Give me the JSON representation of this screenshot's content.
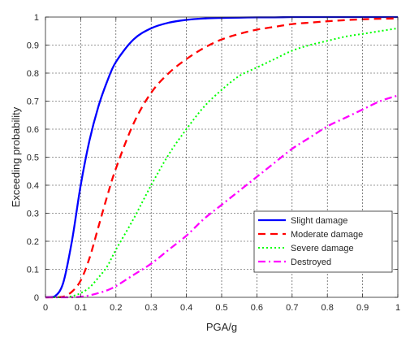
{
  "chart_data": {
    "type": "line",
    "title": "",
    "xlabel": "PGA/g",
    "ylabel": "Exceeding probability",
    "xlim": [
      0,
      1
    ],
    "ylim": [
      0,
      1
    ],
    "xticks": [
      "0",
      "0.1",
      "0.2",
      "0.3",
      "0.4",
      "0.5",
      "0.6",
      "0.7",
      "0.8",
      "0.9",
      "1"
    ],
    "yticks": [
      "0",
      "0.1",
      "0.2",
      "0.3",
      "0.4",
      "0.5",
      "0.6",
      "0.7",
      "0.8",
      "0.9",
      "1"
    ],
    "grid": true,
    "legend_position": "bottom-right",
    "x": [
      0,
      0.025,
      0.05,
      0.075,
      0.1,
      0.125,
      0.15,
      0.175,
      0.2,
      0.25,
      0.3,
      0.35,
      0.4,
      0.45,
      0.5,
      0.55,
      0.6,
      0.65,
      0.7,
      0.75,
      0.8,
      0.85,
      0.9,
      0.95,
      1
    ],
    "series": [
      {
        "name": "Slight damage",
        "color": "#0000ff",
        "style": "solid",
        "values": [
          0,
          0.002,
          0.05,
          0.2,
          0.4,
          0.56,
          0.68,
          0.77,
          0.84,
          0.92,
          0.96,
          0.98,
          0.99,
          0.995,
          0.997,
          0.998,
          0.999,
          0.999,
          1,
          1,
          1,
          1,
          1,
          1,
          1
        ]
      },
      {
        "name": "Moderate damage",
        "color": "#ff0000",
        "style": "dashed",
        "values": [
          0,
          0,
          0.002,
          0.02,
          0.06,
          0.14,
          0.25,
          0.36,
          0.46,
          0.62,
          0.73,
          0.8,
          0.85,
          0.89,
          0.92,
          0.94,
          0.955,
          0.965,
          0.975,
          0.98,
          0.985,
          0.989,
          0.992,
          0.994,
          0.995
        ]
      },
      {
        "name": "Severe damage",
        "color": "#00ff00",
        "style": "dotted",
        "values": [
          0,
          0,
          0,
          0.004,
          0.015,
          0.035,
          0.07,
          0.11,
          0.17,
          0.28,
          0.4,
          0.51,
          0.6,
          0.68,
          0.74,
          0.79,
          0.82,
          0.85,
          0.88,
          0.9,
          0.915,
          0.93,
          0.94,
          0.95,
          0.96
        ]
      },
      {
        "name": "Destroyed",
        "color": "#ff00ff",
        "style": "dashdot",
        "values": [
          0,
          0,
          0,
          0,
          0.002,
          0.007,
          0.015,
          0.025,
          0.04,
          0.08,
          0.12,
          0.17,
          0.22,
          0.28,
          0.33,
          0.38,
          0.43,
          0.48,
          0.53,
          0.57,
          0.61,
          0.64,
          0.67,
          0.7,
          0.72
        ]
      }
    ]
  }
}
